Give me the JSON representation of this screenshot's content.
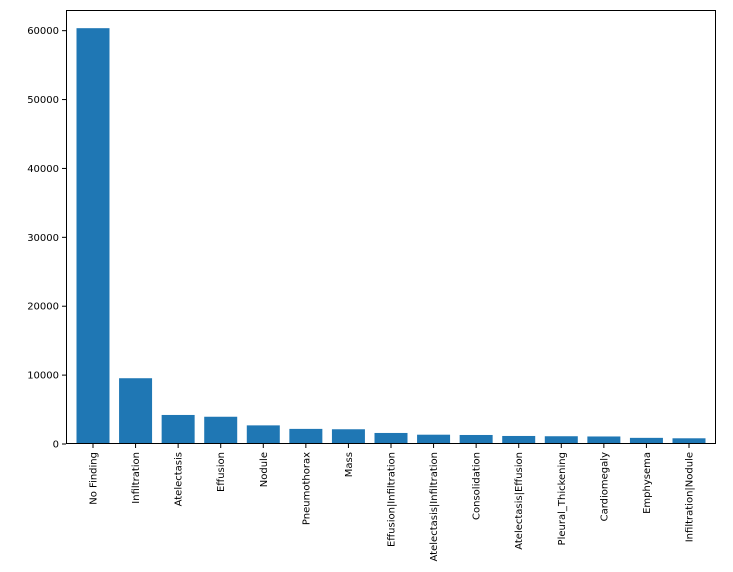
{
  "chart_data": {
    "type": "bar",
    "title": "",
    "xlabel": "",
    "ylabel": "",
    "categories": [
      "No Finding",
      "Infiltration",
      "Atelectasis",
      "Effusion",
      "Nodule",
      "Pneumothorax",
      "Mass",
      "Effusion|Infiltration",
      "Atelectasis|Infiltration",
      "Consolidation",
      "Atelectasis|Effusion",
      "Pleural_Thickening",
      "Cardiomegaly",
      "Emphysema",
      "Infiltration|Nodule"
    ],
    "values": [
      60361,
      9547,
      4215,
      3955,
      2705,
      2194,
      2139,
      1603,
      1350,
      1310,
      1165,
      1126,
      1093,
      892,
      829
    ],
    "ylim": [
      0,
      63000
    ],
    "yticks": [
      0,
      10000,
      20000,
      30000,
      40000,
      50000,
      60000
    ],
    "ytick_labels": [
      "0",
      "10000",
      "20000",
      "30000",
      "40000",
      "50000",
      "60000"
    ],
    "bar_color": "#1f77b4",
    "grid": false,
    "legend": "none"
  }
}
